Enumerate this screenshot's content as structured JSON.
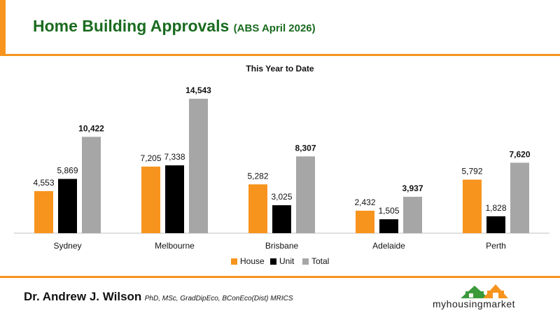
{
  "header": {
    "title": "Home Building Approvals",
    "subtitle": "(ABS April 2026)"
  },
  "footer": {
    "author": "Dr. Andrew J. Wilson",
    "credentials": "PhD, MSc, GradDipEco, BConEco(Dist) MRICS",
    "logo_text": "myhousingmarket"
  },
  "colors": {
    "accent": "#f7941d",
    "title_green": "#1a6b1f",
    "house": "#f7941d",
    "unit": "#000000",
    "total": "#a6a6a6"
  },
  "chart_data": {
    "type": "bar",
    "title": "This Year to Date",
    "categories": [
      "Sydney",
      "Melbourne",
      "Brisbane",
      "Adelaide",
      "Perth"
    ],
    "series": [
      {
        "name": "House",
        "values": [
          4553,
          7205,
          5282,
          2432,
          5792
        ],
        "labels": [
          "4,553",
          "7,205",
          "5,282",
          "2,432",
          "5,792"
        ]
      },
      {
        "name": "Unit",
        "values": [
          5869,
          7338,
          3025,
          1505,
          1828
        ],
        "labels": [
          "5,869",
          "7,338",
          "3,025",
          "1,505",
          "1,828"
        ]
      },
      {
        "name": "Total",
        "values": [
          10422,
          14543,
          8307,
          3937,
          7620
        ],
        "labels": [
          "10,422",
          "14,543",
          "8,307",
          "3,937",
          "7,620"
        ]
      }
    ],
    "ylim": [
      0,
      15000
    ],
    "grid": false,
    "legend": "bottom"
  }
}
